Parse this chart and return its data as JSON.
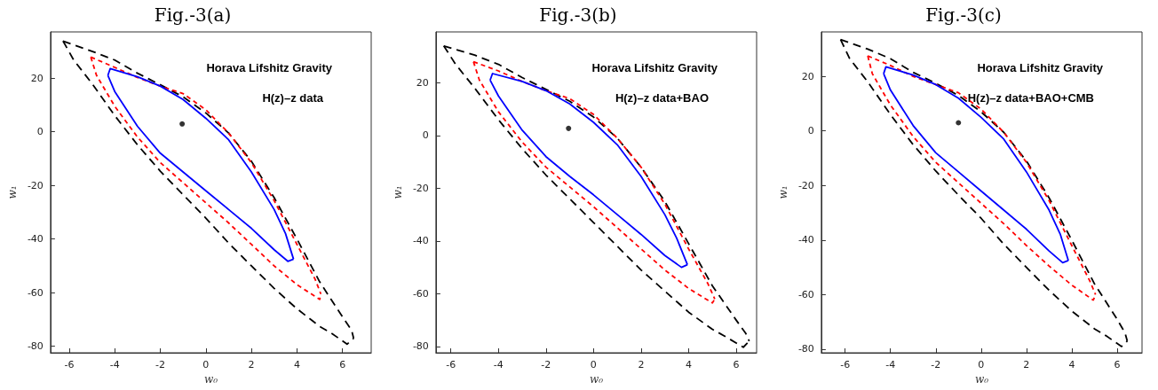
{
  "chart_data": [
    {
      "type": "line",
      "title": "Fig.-3(a)",
      "xlabel": "w₀",
      "ylabel": "w₁",
      "annotations": [
        "Horava Lifshitz Gravity",
        "H(z)–z data"
      ],
      "xlim": [
        -6.82,
        7.26
      ],
      "ylim": [
        -82.4,
        37.2
      ],
      "xticks": [
        -6,
        -4,
        -2,
        0,
        2,
        4,
        6
      ],
      "yticks": [
        -80,
        -60,
        -40,
        -20,
        0,
        20
      ],
      "grid": false,
      "marker": "none",
      "series": [
        {
          "color": "#000000",
          "line_style": "dashed",
          "x": [
            -6.27,
            -5,
            -4,
            -3,
            -2,
            -1,
            0,
            1,
            2,
            3,
            4,
            5,
            6,
            6.4,
            6.49
          ],
          "values": [
            33.8,
            30,
            26.7,
            21.8,
            17.5,
            13,
            7,
            -0.5,
            -11,
            -24.6,
            -40,
            -56,
            -69,
            -74,
            -77
          ]
        },
        {
          "color": "#000000",
          "line_style": "dashed",
          "x": [
            -6.27,
            -5.8,
            -5,
            -4,
            -3,
            -2,
            -1,
            0,
            1,
            2,
            3,
            4,
            5,
            5.5,
            6.2,
            6.49
          ],
          "values": [
            33.8,
            26.7,
            18,
            6,
            -4.9,
            -14.7,
            -23.5,
            -32.2,
            -41.5,
            -50,
            -58.4,
            -66,
            -72.6,
            -75,
            -79.2,
            -77
          ]
        },
        {
          "color": "#ff0000",
          "line_style": "dotted",
          "x": [
            -5.05,
            -4,
            -3,
            -2,
            -1,
            0,
            1,
            2,
            3,
            4,
            4.8,
            5.05
          ],
          "values": [
            27.8,
            24,
            20.2,
            17,
            14.2,
            8.2,
            -0.5,
            -11.5,
            -25.7,
            -42,
            -55,
            -60.5
          ]
        },
        {
          "color": "#ff0000",
          "line_style": "dotted",
          "x": [
            -5.05,
            -4.8,
            -4,
            -3,
            -2,
            -1,
            0,
            1,
            2,
            3,
            4,
            5,
            5.05
          ],
          "values": [
            27.8,
            21,
            9.5,
            -2,
            -11.5,
            -19,
            -26.5,
            -34,
            -42,
            -50,
            -57,
            -62.5,
            -60.5
          ]
        },
        {
          "color": "#0000ff",
          "line_style": "solid",
          "x": [
            -4.3,
            -4.2,
            -3,
            -2,
            -1,
            0,
            1,
            2,
            3,
            3.5,
            3.85
          ],
          "values": [
            21,
            23.5,
            20.5,
            17,
            12,
            5,
            -3,
            -15,
            -29,
            -38,
            -47.5
          ]
        },
        {
          "color": "#0000ff",
          "line_style": "solid",
          "x": [
            -4.3,
            -4,
            -3,
            -2,
            -1,
            0,
            1,
            2,
            3,
            3.6,
            3.85
          ],
          "values": [
            21,
            15,
            2,
            -8,
            -15,
            -22,
            -29,
            -36,
            -44,
            -48.3,
            -47.5
          ]
        },
        {
          "type": "scatter",
          "marker": "circle",
          "color": "#000000",
          "x": [
            -1.04
          ],
          "values": [
            2.9
          ]
        }
      ]
    },
    {
      "type": "line",
      "title": "Fig.-3(b)",
      "xlabel": "w₀",
      "ylabel": "w₁",
      "annotations": [
        "Horava Lifshitz Gravity",
        "H(z)–z data+BAO"
      ],
      "xlim": [
        -6.63,
        6.86
      ],
      "ylim": [
        -82.4,
        39.3
      ],
      "xticks": [
        -6,
        -4,
        -2,
        0,
        2,
        4,
        6
      ],
      "yticks": [
        -80,
        -60,
        -40,
        -20,
        0,
        20
      ],
      "grid": false,
      "marker": "none",
      "series": [
        {
          "color": "#000000",
          "line_style": "dashed",
          "x": [
            -6.3,
            -5,
            -4,
            -3,
            -2,
            -1,
            0,
            1,
            2,
            3,
            4,
            5,
            6,
            6.4,
            6.55
          ],
          "values": [
            34,
            30.5,
            27,
            22,
            17.5,
            13,
            7,
            -1,
            -12,
            -25,
            -41,
            -57,
            -70,
            -75,
            -78
          ]
        },
        {
          "color": "#000000",
          "line_style": "dashed",
          "x": [
            -6.3,
            -5.8,
            -5,
            -4,
            -3,
            -2,
            -1,
            0,
            1,
            2,
            3,
            4,
            5,
            5.5,
            6.3,
            6.55
          ],
          "values": [
            34,
            27,
            18,
            6,
            -5,
            -15,
            -24,
            -33,
            -42,
            -51,
            -59,
            -67,
            -73.5,
            -76,
            -80.3,
            -78
          ]
        },
        {
          "color": "#ff0000",
          "line_style": "dotted",
          "x": [
            -5.05,
            -4,
            -3,
            -2,
            -1,
            0,
            1,
            2,
            3,
            4,
            4.8,
            5.1
          ],
          "values": [
            28,
            24.5,
            20.5,
            17,
            14,
            8,
            -1,
            -12,
            -26,
            -43,
            -56,
            -62
          ]
        },
        {
          "color": "#ff0000",
          "line_style": "dotted",
          "x": [
            -5.05,
            -4.8,
            -4,
            -3,
            -2,
            -1,
            0,
            1,
            2,
            3,
            4,
            5,
            5.1
          ],
          "values": [
            28,
            21,
            9,
            -2.5,
            -12,
            -19.5,
            -27,
            -35,
            -43,
            -51,
            -58,
            -63.5,
            -62
          ]
        },
        {
          "color": "#0000ff",
          "line_style": "solid",
          "x": [
            -4.35,
            -4.25,
            -3,
            -2,
            -1,
            0,
            1,
            2,
            3,
            3.5,
            3.95
          ],
          "values": [
            21,
            23.5,
            20.5,
            17,
            12,
            5,
            -3.5,
            -15.5,
            -30,
            -39,
            -49
          ]
        },
        {
          "color": "#0000ff",
          "line_style": "solid",
          "x": [
            -4.35,
            -4,
            -3,
            -2,
            -1,
            0,
            1,
            2,
            3,
            3.7,
            3.95
          ],
          "values": [
            21,
            15,
            2,
            -8,
            -15.5,
            -22.5,
            -30,
            -37.5,
            -45.5,
            -50,
            -49
          ]
        },
        {
          "type": "scatter",
          "marker": "circle",
          "color": "#000000",
          "x": [
            -1.05
          ],
          "values": [
            2.7
          ]
        }
      ]
    },
    {
      "type": "line",
      "title": "Fig.-3(c)",
      "xlabel": "w₀",
      "ylabel": "w₁",
      "annotations": [
        "Horava Lifshitz Gravity",
        "H(z)–z data+BAO+CMB"
      ],
      "xlim": [
        -7.05,
        7.1
      ],
      "ylim": [
        -81.3,
        36.3
      ],
      "xticks": [
        -6,
        -4,
        -2,
        0,
        2,
        4,
        6
      ],
      "yticks": [
        -80,
        -60,
        -40,
        -20,
        0,
        20
      ],
      "grid": false,
      "marker": "none",
      "series": [
        {
          "color": "#000000",
          "line_style": "dashed",
          "x": [
            -6.2,
            -5,
            -4,
            -3,
            -2,
            -1,
            0,
            1,
            2,
            3,
            4,
            5,
            6,
            6.35,
            6.45
          ],
          "values": [
            33.5,
            30,
            26.5,
            21.5,
            17.5,
            13,
            7,
            -0.5,
            -11,
            -24.5,
            -40,
            -56,
            -69,
            -74,
            -77
          ]
        },
        {
          "color": "#000000",
          "line_style": "dashed",
          "x": [
            -6.2,
            -5.8,
            -5,
            -4,
            -3,
            -2,
            -1,
            0,
            1,
            2,
            3,
            4,
            5,
            5.5,
            6.2,
            6.45
          ],
          "values": [
            33.5,
            26.5,
            18,
            6,
            -5,
            -14.7,
            -23.5,
            -32,
            -41.5,
            -50,
            -58.4,
            -66,
            -72.5,
            -75,
            -79,
            -77
          ]
        },
        {
          "color": "#ff0000",
          "line_style": "dotted",
          "x": [
            -5,
            -4,
            -3,
            -2,
            -1,
            0,
            1,
            2,
            3,
            4,
            4.8,
            5.05
          ],
          "values": [
            27.5,
            24,
            20,
            17,
            14,
            8,
            -0.5,
            -11.5,
            -25.5,
            -42,
            -55,
            -60
          ]
        },
        {
          "color": "#ff0000",
          "line_style": "dotted",
          "x": [
            -5,
            -4.8,
            -4,
            -3,
            -2,
            -1,
            0,
            1,
            2,
            3,
            4,
            4.95,
            5.05
          ],
          "values": [
            27.5,
            21,
            9.5,
            -2,
            -11.5,
            -19,
            -26.5,
            -34,
            -42,
            -49.5,
            -56.5,
            -62,
            -60
          ]
        },
        {
          "color": "#0000ff",
          "line_style": "solid",
          "x": [
            -4.3,
            -4.2,
            -3,
            -2,
            -1,
            0,
            1,
            2,
            3,
            3.5,
            3.85
          ],
          "values": [
            21,
            23.5,
            20.5,
            17,
            12,
            5,
            -3,
            -15,
            -29,
            -38,
            -47.5
          ]
        },
        {
          "color": "#0000ff",
          "line_style": "solid",
          "x": [
            -4.3,
            -4,
            -3,
            -2,
            -1,
            0,
            1,
            2,
            3,
            3.6,
            3.85
          ],
          "values": [
            21,
            15,
            2,
            -8,
            -15,
            -22,
            -29,
            -36,
            -44,
            -48.3,
            -47.5
          ]
        },
        {
          "type": "scatter",
          "marker": "circle",
          "color": "#000000",
          "x": [
            -1
          ],
          "values": [
            3
          ]
        }
      ]
    }
  ]
}
